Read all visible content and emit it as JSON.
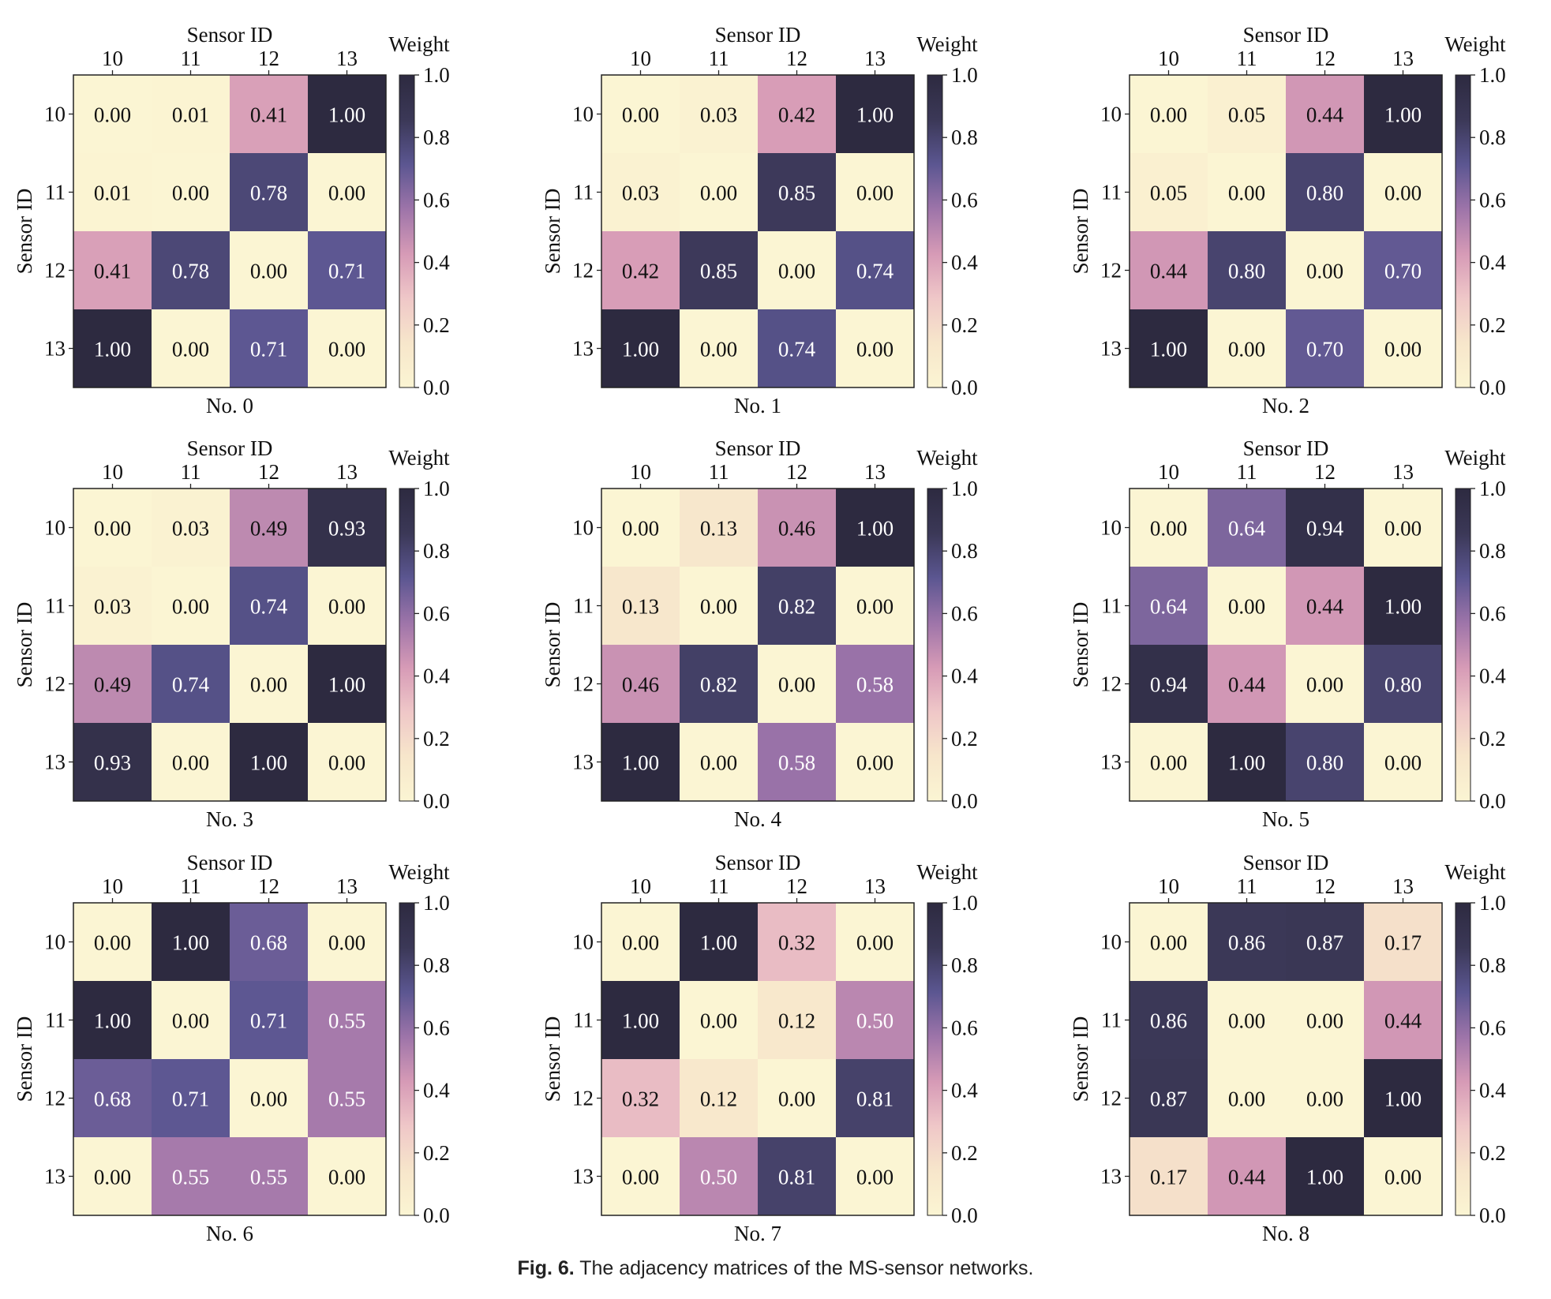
{
  "figure": {
    "caption_label": "Fig. 6.",
    "caption_text": "The adjacency matrices of the MS-sensor networks."
  },
  "colormap": {
    "stops": [
      "#fbf5d3",
      "#f7e6cb",
      "#efc7c8",
      "#d69ab6",
      "#9d74a9",
      "#5b5691",
      "#3b3857",
      "#2d2a40"
    ],
    "text_dark": "#111111",
    "text_light": "#ffffff"
  },
  "chart_data": [
    {
      "type": "heatmap",
      "title": "No. 0",
      "xlabel": "Sensor ID",
      "ylabel": "Sensor ID",
      "colorbar_label": "Weight",
      "x_ticks": [
        "10",
        "11",
        "12",
        "13"
      ],
      "y_ticks": [
        "10",
        "11",
        "12",
        "13"
      ],
      "colorbar_ticks": [
        "0.0",
        "0.2",
        "0.4",
        "0.6",
        "0.8",
        "1.0"
      ],
      "vlim": [
        0,
        1
      ],
      "values": [
        [
          0.0,
          0.01,
          0.41,
          1.0
        ],
        [
          0.01,
          0.0,
          0.78,
          0.0
        ],
        [
          0.41,
          0.78,
          0.0,
          0.71
        ],
        [
          1.0,
          0.0,
          0.71,
          0.0
        ]
      ],
      "labels": [
        [
          "0.00",
          "0.01",
          "0.41",
          "1.00"
        ],
        [
          "0.01",
          "0.00",
          "0.78",
          "0.00"
        ],
        [
          "0.41",
          "0.78",
          "0.00",
          "0.71"
        ],
        [
          "1.00",
          "0.00",
          "0.71",
          "0.00"
        ]
      ]
    },
    {
      "type": "heatmap",
      "title": "No. 1",
      "xlabel": "Sensor ID",
      "ylabel": "Sensor ID",
      "colorbar_label": "Weight",
      "x_ticks": [
        "10",
        "11",
        "12",
        "13"
      ],
      "y_ticks": [
        "10",
        "11",
        "12",
        "13"
      ],
      "colorbar_ticks": [
        "0.0",
        "0.2",
        "0.4",
        "0.6",
        "0.8",
        "1.0"
      ],
      "vlim": [
        0,
        1
      ],
      "values": [
        [
          0.0,
          0.03,
          0.42,
          1.0
        ],
        [
          0.03,
          0.0,
          0.85,
          0.0
        ],
        [
          0.42,
          0.85,
          0.0,
          0.74
        ],
        [
          1.0,
          0.0,
          0.74,
          0.0
        ]
      ],
      "labels": [
        [
          "0.00",
          "0.03",
          "0.42",
          "1.00"
        ],
        [
          "0.03",
          "0.00",
          "0.85",
          "0.00"
        ],
        [
          "0.42",
          "0.85",
          "0.00",
          "0.74"
        ],
        [
          "1.00",
          "0.00",
          "0.74",
          "0.00"
        ]
      ]
    },
    {
      "type": "heatmap",
      "title": "No. 2",
      "xlabel": "Sensor ID",
      "ylabel": "Sensor ID",
      "colorbar_label": "Weight",
      "x_ticks": [
        "10",
        "11",
        "12",
        "13"
      ],
      "y_ticks": [
        "10",
        "11",
        "12",
        "13"
      ],
      "colorbar_ticks": [
        "0.0",
        "0.2",
        "0.4",
        "0.6",
        "0.8",
        "1.0"
      ],
      "vlim": [
        0,
        1
      ],
      "values": [
        [
          0.0,
          0.05,
          0.44,
          1.0
        ],
        [
          0.05,
          0.0,
          0.8,
          0.0
        ],
        [
          0.44,
          0.8,
          0.0,
          0.7
        ],
        [
          1.0,
          0.0,
          0.7,
          0.0
        ]
      ],
      "labels": [
        [
          "0.00",
          "0.05",
          "0.44",
          "1.00"
        ],
        [
          "0.05",
          "0.00",
          "0.80",
          "0.00"
        ],
        [
          "0.44",
          "0.80",
          "0.00",
          "0.70"
        ],
        [
          "1.00",
          "0.00",
          "0.70",
          "0.00"
        ]
      ]
    },
    {
      "type": "heatmap",
      "title": "No. 3",
      "xlabel": "Sensor ID",
      "ylabel": "Sensor ID",
      "colorbar_label": "Weight",
      "x_ticks": [
        "10",
        "11",
        "12",
        "13"
      ],
      "y_ticks": [
        "10",
        "11",
        "12",
        "13"
      ],
      "colorbar_ticks": [
        "0.0",
        "0.2",
        "0.4",
        "0.6",
        "0.8",
        "1.0"
      ],
      "vlim": [
        0,
        1
      ],
      "values": [
        [
          0.0,
          0.03,
          0.49,
          0.93
        ],
        [
          0.03,
          0.0,
          0.74,
          0.0
        ],
        [
          0.49,
          0.74,
          0.0,
          1.0
        ],
        [
          0.93,
          0.0,
          1.0,
          0.0
        ]
      ],
      "labels": [
        [
          "0.00",
          "0.03",
          "0.49",
          "0.93"
        ],
        [
          "0.03",
          "0.00",
          "0.74",
          "0.00"
        ],
        [
          "0.49",
          "0.74",
          "0.00",
          "1.00"
        ],
        [
          "0.93",
          "0.00",
          "1.00",
          "0.00"
        ]
      ]
    },
    {
      "type": "heatmap",
      "title": "No. 4",
      "xlabel": "Sensor ID",
      "ylabel": "Sensor ID",
      "colorbar_label": "Weight",
      "x_ticks": [
        "10",
        "11",
        "12",
        "13"
      ],
      "y_ticks": [
        "10",
        "11",
        "12",
        "13"
      ],
      "colorbar_ticks": [
        "0.0",
        "0.2",
        "0.4",
        "0.6",
        "0.8",
        "1.0"
      ],
      "vlim": [
        0,
        1
      ],
      "values": [
        [
          0.0,
          0.13,
          0.46,
          1.0
        ],
        [
          0.13,
          0.0,
          0.82,
          0.0
        ],
        [
          0.46,
          0.82,
          0.0,
          0.58
        ],
        [
          1.0,
          0.0,
          0.58,
          0.0
        ]
      ],
      "labels": [
        [
          "0.00",
          "0.13",
          "0.46",
          "1.00"
        ],
        [
          "0.13",
          "0.00",
          "0.82",
          "0.00"
        ],
        [
          "0.46",
          "0.82",
          "0.00",
          "0.58"
        ],
        [
          "1.00",
          "0.00",
          "0.58",
          "0.00"
        ]
      ]
    },
    {
      "type": "heatmap",
      "title": "No. 5",
      "xlabel": "Sensor ID",
      "ylabel": "Sensor ID",
      "colorbar_label": "Weight",
      "x_ticks": [
        "10",
        "11",
        "12",
        "13"
      ],
      "y_ticks": [
        "10",
        "11",
        "12",
        "13"
      ],
      "colorbar_ticks": [
        "0.0",
        "0.2",
        "0.4",
        "0.6",
        "0.8",
        "1.0"
      ],
      "vlim": [
        0,
        1
      ],
      "values": [
        [
          0.0,
          0.64,
          0.94,
          0.0
        ],
        [
          0.64,
          0.0,
          0.44,
          1.0
        ],
        [
          0.94,
          0.44,
          0.0,
          0.8
        ],
        [
          0.0,
          1.0,
          0.8,
          0.0
        ]
      ],
      "labels": [
        [
          "0.00",
          "0.64",
          "0.94",
          "0.00"
        ],
        [
          "0.64",
          "0.00",
          "0.44",
          "1.00"
        ],
        [
          "0.94",
          "0.44",
          "0.00",
          "0.80"
        ],
        [
          "0.00",
          "1.00",
          "0.80",
          "0.00"
        ]
      ]
    },
    {
      "type": "heatmap",
      "title": "No. 6",
      "xlabel": "Sensor ID",
      "ylabel": "Sensor ID",
      "colorbar_label": "Weight",
      "x_ticks": [
        "10",
        "11",
        "12",
        "13"
      ],
      "y_ticks": [
        "10",
        "11",
        "12",
        "13"
      ],
      "colorbar_ticks": [
        "0.0",
        "0.2",
        "0.4",
        "0.6",
        "0.8",
        "1.0"
      ],
      "vlim": [
        0,
        1
      ],
      "values": [
        [
          0.0,
          1.0,
          0.68,
          0.0
        ],
        [
          1.0,
          0.0,
          0.71,
          0.55
        ],
        [
          0.68,
          0.71,
          0.0,
          0.55
        ],
        [
          0.0,
          0.55,
          0.55,
          0.0
        ]
      ],
      "labels": [
        [
          "0.00",
          "1.00",
          "0.68",
          "0.00"
        ],
        [
          "1.00",
          "0.00",
          "0.71",
          "0.55"
        ],
        [
          "0.68",
          "0.71",
          "0.00",
          "0.55"
        ],
        [
          "0.00",
          "0.55",
          "0.55",
          "0.00"
        ]
      ]
    },
    {
      "type": "heatmap",
      "title": "No. 7",
      "xlabel": "Sensor ID",
      "ylabel": "Sensor ID",
      "colorbar_label": "Weight",
      "x_ticks": [
        "10",
        "11",
        "12",
        "13"
      ],
      "y_ticks": [
        "10",
        "11",
        "12",
        "13"
      ],
      "colorbar_ticks": [
        "0.0",
        "0.2",
        "0.4",
        "0.6",
        "0.8",
        "1.0"
      ],
      "vlim": [
        0,
        1
      ],
      "values": [
        [
          0.0,
          1.0,
          0.32,
          0.0
        ],
        [
          1.0,
          0.0,
          0.12,
          0.5
        ],
        [
          0.32,
          0.12,
          0.0,
          0.81
        ],
        [
          0.0,
          0.5,
          0.81,
          0.0
        ]
      ],
      "labels": [
        [
          "0.00",
          "1.00",
          "0.32",
          "0.00"
        ],
        [
          "1.00",
          "0.00",
          "0.12",
          "0.50"
        ],
        [
          "0.32",
          "0.12",
          "0.00",
          "0.81"
        ],
        [
          "0.00",
          "0.50",
          "0.81",
          "0.00"
        ]
      ]
    },
    {
      "type": "heatmap",
      "title": "No. 8",
      "xlabel": "Sensor ID",
      "ylabel": "Sensor ID",
      "colorbar_label": "Weight",
      "x_ticks": [
        "10",
        "11",
        "12",
        "13"
      ],
      "y_ticks": [
        "10",
        "11",
        "12",
        "13"
      ],
      "colorbar_ticks": [
        "0.0",
        "0.2",
        "0.4",
        "0.6",
        "0.8",
        "1.0"
      ],
      "vlim": [
        0,
        1
      ],
      "values": [
        [
          0.0,
          0.86,
          0.87,
          0.17
        ],
        [
          0.86,
          0.0,
          0.0,
          0.44
        ],
        [
          0.87,
          0.0,
          0.0,
          1.0
        ],
        [
          0.17,
          0.44,
          1.0,
          0.0
        ]
      ],
      "labels": [
        [
          "0.00",
          "0.86",
          "0.87",
          "0.17"
        ],
        [
          "0.86",
          "0.00",
          "0.00",
          "0.44"
        ],
        [
          "0.87",
          "0.00",
          "0.00",
          "1.00"
        ],
        [
          "0.17",
          "0.44",
          "1.00",
          "0.00"
        ]
      ]
    }
  ]
}
